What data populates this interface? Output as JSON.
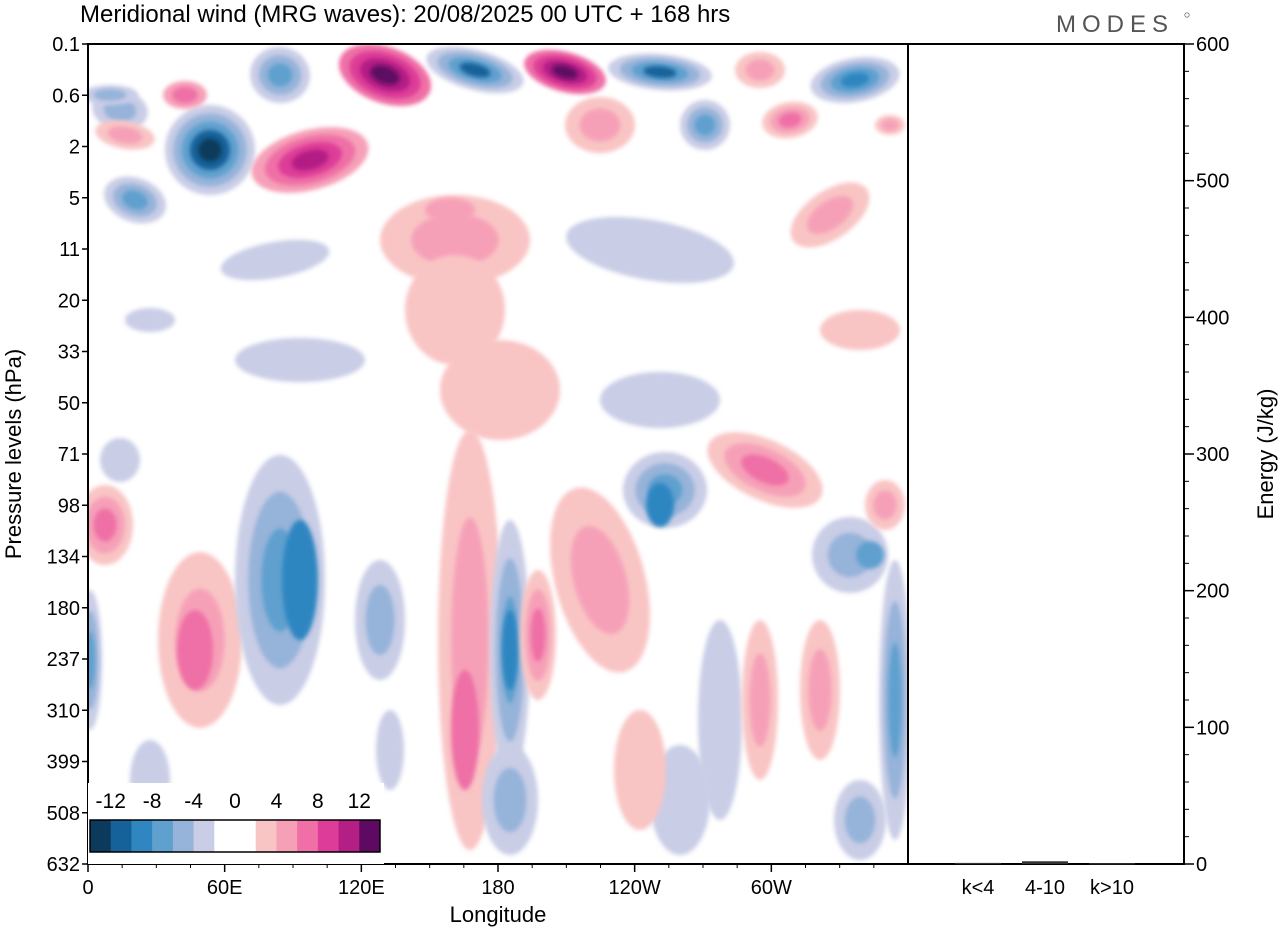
{
  "header": {
    "title": "Meridional wind (MRG waves):  20/08/2025  00 UTC  + 168 hrs",
    "brand": "MODES"
  },
  "chart_data": [
    {
      "type": "heatmap",
      "title": "Meridional wind (MRG waves)",
      "xlabel": "Longitude",
      "ylabel": "Pressure levels (hPa)",
      "x_ticks": [
        "0",
        "60E",
        "120E",
        "180",
        "120W",
        "60W"
      ],
      "y_ticks": [
        "0.1",
        "0.6",
        "2",
        "5",
        "11",
        "20",
        "33",
        "50",
        "71",
        "98",
        "134",
        "180",
        "237",
        "310",
        "399",
        "508",
        "632"
      ],
      "colorbar": {
        "labels": [
          "-12",
          "-8",
          "-4",
          "0",
          "4",
          "8",
          "12"
        ],
        "colors": [
          "#0b3a5c",
          "#15629a",
          "#2f86c1",
          "#5fa0cf",
          "#96b3d9",
          "#c9cde6",
          "#ffffff",
          "#ffffff",
          "#f9c4c4",
          "#f6a0b8",
          "#ef6fa6",
          "#dd3d98",
          "#b31f84",
          "#5e0a63"
        ]
      },
      "note": "contour field of MRG-wave meridional wind; blue negative, pink positive"
    },
    {
      "type": "bar",
      "ylabel": "Energy (J/kg)",
      "categories": [
        "k<4",
        "4-10",
        "k>10"
      ],
      "values": [
        0.8,
        2.0,
        0.6
      ],
      "ylim": [
        0,
        600
      ],
      "y_ticks": [
        "0",
        "100",
        "200",
        "300",
        "400",
        "500",
        "600"
      ]
    }
  ]
}
